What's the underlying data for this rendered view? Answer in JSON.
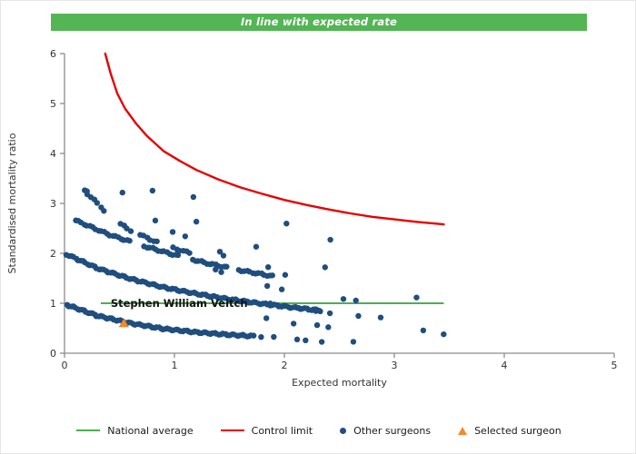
{
  "banner": {
    "text": "In line with expected rate",
    "bg_color": "#53B554",
    "text_color": "#FFFFFF"
  },
  "legend": {
    "items": [
      {
        "name": "national-average",
        "swatch": "line",
        "color": "#4CAF50",
        "label": "National average"
      },
      {
        "name": "control-limit",
        "swatch": "line",
        "color": "#E80000",
        "label": "Control limit"
      },
      {
        "name": "other-surgeons",
        "swatch": "dot",
        "color": "#1F4E7F",
        "label": "Other surgeons"
      },
      {
        "name": "selected-surgeon",
        "swatch": "triangle",
        "color": "#F5892D",
        "label": "Selected surgeon"
      }
    ]
  },
  "chart_data": {
    "type": "scatter",
    "title": "In line with expected rate",
    "xlabel": "Expected mortality",
    "ylabel": "Standardised mortality ratio",
    "xlim": [
      0,
      5
    ],
    "ylim": [
      0,
      6
    ],
    "x_ticks": [
      0,
      1,
      2,
      3,
      4,
      5
    ],
    "y_ticks": [
      0,
      1,
      2,
      3,
      4,
      5,
      6
    ],
    "grid": false,
    "legend_position": "bottom",
    "colors": {
      "points": "#1F4E7F",
      "control_limit": "#E80000",
      "national_average": "#4CAF50",
      "selected": "#F5892D",
      "selected_edge": "#D97718",
      "axis": "#8C8C8C",
      "tick_text": "#333333",
      "label_text": "#111111"
    },
    "national_average": {
      "y": 1.0,
      "x_start": 0.33,
      "x_end": 3.45
    },
    "control_limit": {
      "points": [
        [
          0.37,
          6.0
        ],
        [
          0.42,
          5.6
        ],
        [
          0.48,
          5.2
        ],
        [
          0.55,
          4.9
        ],
        [
          0.65,
          4.6
        ],
        [
          0.75,
          4.35
        ],
        [
          0.9,
          4.05
        ],
        [
          1.05,
          3.85
        ],
        [
          1.2,
          3.67
        ],
        [
          1.4,
          3.48
        ],
        [
          1.6,
          3.32
        ],
        [
          1.8,
          3.19
        ],
        [
          2.0,
          3.07
        ],
        [
          2.2,
          2.97
        ],
        [
          2.4,
          2.88
        ],
        [
          2.6,
          2.8
        ],
        [
          2.8,
          2.73
        ],
        [
          3.0,
          2.68
        ],
        [
          3.2,
          2.63
        ],
        [
          3.45,
          2.58
        ]
      ]
    },
    "selected_surgeon": {
      "label": "Stephen William Veitch",
      "x": 0.54,
      "y": 0.6,
      "label_x": 0.42,
      "label_y": 1.0
    },
    "other_surgeons": {
      "bands": [
        {
          "points": [
            [
              0.02,
              0.97
            ],
            [
              0.3,
              0.75
            ],
            [
              0.6,
              0.6
            ],
            [
              0.9,
              0.49
            ],
            [
              1.2,
              0.42
            ],
            [
              1.5,
              0.37
            ],
            [
              1.73,
              0.34
            ]
          ],
          "step": 0.0195,
          "gaps": []
        },
        {
          "points": [
            [
              0.02,
              1.98
            ],
            [
              0.3,
              1.7
            ],
            [
              0.6,
              1.49
            ],
            [
              0.9,
              1.32
            ],
            [
              1.2,
              1.19
            ],
            [
              1.5,
              1.08
            ],
            [
              1.8,
              0.99
            ],
            [
              2.1,
              0.91
            ],
            [
              2.35,
              0.85
            ]
          ],
          "step": 0.021,
          "gaps": []
        },
        {
          "points": [
            [
              0.1,
              2.66
            ],
            [
              0.4,
              2.38
            ],
            [
              0.7,
              2.16
            ],
            [
              1.0,
              1.97
            ],
            [
              1.3,
              1.8
            ],
            [
              1.6,
              1.66
            ],
            [
              1.9,
              1.54
            ]
          ],
          "step": 0.026,
          "gaps": [
            [
              0.62,
              0.72
            ],
            [
              1.05,
              1.15
            ],
            [
              1.5,
              1.58
            ]
          ]
        },
        {
          "points": [
            [
              0.18,
              3.26
            ],
            [
              0.3,
              3.0
            ],
            [
              0.44,
              2.68
            ],
            [
              0.6,
              2.46
            ],
            [
              0.8,
              2.26
            ],
            [
              1.0,
              2.1
            ],
            [
              1.15,
              2.0
            ]
          ],
          "step": 0.03,
          "gaps": [
            [
              0.37,
              0.49
            ],
            [
              0.63,
              0.67
            ],
            [
              0.86,
              0.98
            ]
          ]
        }
      ],
      "scatter": [
        [
          0.2,
          3.26
        ],
        [
          0.53,
          3.22
        ],
        [
          0.8,
          3.24
        ],
        [
          1.17,
          3.12
        ],
        [
          0.83,
          2.67
        ],
        [
          0.98,
          2.44
        ],
        [
          1.1,
          2.33
        ],
        [
          1.2,
          2.62
        ],
        [
          1.41,
          2.04
        ],
        [
          1.45,
          1.97
        ],
        [
          1.74,
          2.13
        ],
        [
          2.02,
          2.58
        ],
        [
          2.42,
          2.27
        ],
        [
          1.37,
          1.69
        ],
        [
          1.43,
          1.63
        ],
        [
          1.85,
          1.71
        ],
        [
          2.37,
          1.71
        ],
        [
          2.01,
          1.58
        ],
        [
          1.84,
          1.36
        ],
        [
          1.98,
          1.27
        ],
        [
          1.87,
          0.98
        ],
        [
          2.13,
          0.91
        ],
        [
          2.29,
          0.86
        ],
        [
          2.41,
          0.8
        ],
        [
          2.54,
          1.07
        ],
        [
          2.65,
          1.05
        ],
        [
          3.2,
          1.13
        ],
        [
          1.84,
          0.71
        ],
        [
          2.08,
          0.58
        ],
        [
          2.3,
          0.55
        ],
        [
          2.4,
          0.53
        ],
        [
          2.67,
          0.76
        ],
        [
          2.88,
          0.71
        ],
        [
          3.26,
          0.44
        ],
        [
          3.45,
          0.38
        ],
        [
          1.79,
          0.34
        ],
        [
          1.9,
          0.33
        ],
        [
          2.12,
          0.26
        ],
        [
          2.19,
          0.25
        ],
        [
          2.34,
          0.24
        ],
        [
          2.63,
          0.24
        ]
      ]
    }
  }
}
